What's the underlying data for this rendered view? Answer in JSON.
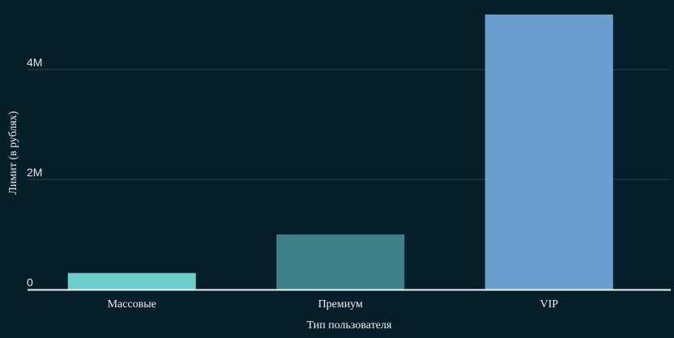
{
  "chart_data": {
    "type": "bar",
    "categories": [
      "Массовые",
      "Премиум",
      "VIP"
    ],
    "values": [
      300000,
      1000000,
      5000000
    ],
    "colors": [
      "#6ccdca",
      "#3e8088",
      "#6a9ecf"
    ],
    "xlabel": "Тип пользователя",
    "ylabel": "Лимит (в рублях)",
    "ylim": [
      0,
      5000000
    ],
    "yticks": [
      0,
      2000000,
      4000000
    ],
    "ytick_labels": [
      "0",
      "2M",
      "4M"
    ],
    "grid": true,
    "background": "#041e2a",
    "grid_color": "#2b4750",
    "axis_color": "#f2f2f2"
  }
}
